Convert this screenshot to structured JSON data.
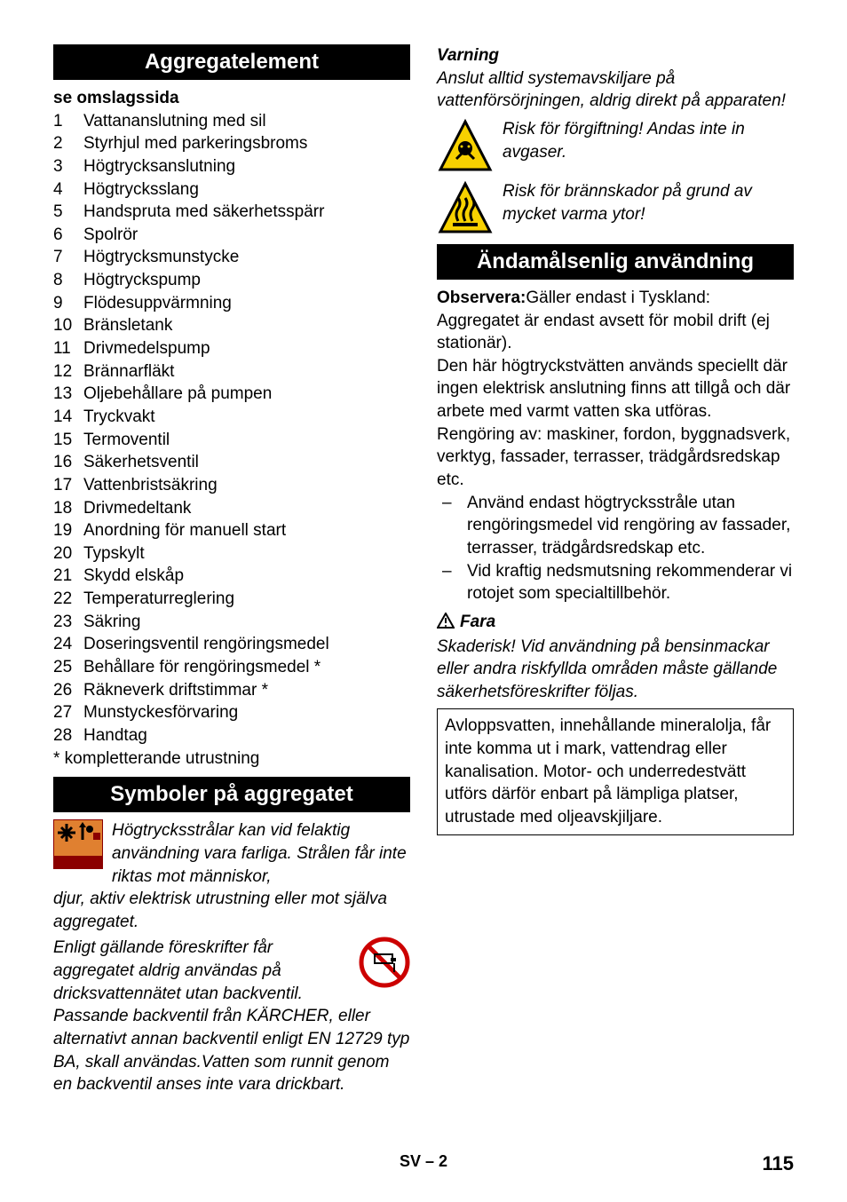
{
  "left": {
    "header1": "Aggregatelement",
    "referenceLine": "se omslagssida",
    "items": [
      "Vattananslutning med sil",
      "Styrhjul med parkeringsbroms",
      "Högtrycksanslutning",
      "Högtrycksslang",
      "Handspruta med säkerhetsspärr",
      "Spolrör",
      "Högtrycksmunstycke",
      "Högtryckspump",
      "Flödesuppvärmning",
      "Bränsletank",
      "Drivmedelspump",
      "Brännarfläkt",
      "Oljebehållare på pumpen",
      "Tryckvakt",
      "Termoventil",
      "Säkerhetsventil",
      "Vattenbristsäkring",
      "Drivmedeltank",
      "Anordning för manuell start",
      "Typskylt",
      "Skydd elskåp",
      "Temperaturreglering",
      "Säkring",
      "Doseringsventil rengöringsmedel",
      "Behållare för rengöringsmedel *",
      "Räkneverk driftstimmar *",
      "Munstyckesförvaring",
      "Handtag"
    ],
    "footnote": "* kompletterande utrustning",
    "header2": "Symboler på aggregatet",
    "symText1": "Högtrycksstrålar kan vid felaktig användning vara farliga. Strålen får inte riktas mot människor, djur, aktiv elektrisk utrustning eller mot själva aggregatet.",
    "symText2": "Enligt gällande föreskrifter får aggregatet aldrig användas på dricksvattennätet utan backventil. Passande backventil från KÄRCHER, eller alternativt annan backventil enligt EN 12729 typ BA, skall användas.Vatten som runnit genom en backventil anses inte vara drickbart."
  },
  "right": {
    "warningLabel": "Varning",
    "warningText": "Anslut alltid systemavskiljare på vattenförsörjningen, aldrig direkt på apparaten!",
    "hazard1": "Risk för förgiftning! Andas inte in avgaser.",
    "hazard2": "Risk för brännskador på grund av mycket varma ytor!",
    "header": "Ändamålsenlig användning",
    "noteLabel": "Observera:",
    "noteText": "Gäller endast i Tyskland: Aggregatet är endast avsett för mobil drift (ej stationär).",
    "para1": "Den här högtryckstvätten används speciellt där ingen elektrisk anslutning finns att tillgå och där arbete med varmt vatten ska utföras.",
    "para2": "Rengöring av: maskiner, fordon, byggnadsverk, verktyg, fassader, terrasser, trädgårdsredskap etc.",
    "bullets": [
      "Använd endast högtrycksstråle utan rengöringsmedel vid rengöring av fassader, terrasser, trädgårdsredskap etc.",
      "Vid kraftig nedsmutsning rekommenderar vi rotojet som specialtillbehör."
    ],
    "dangerLabel": "Fara",
    "dangerText": "Skaderisk! Vid användning på bensinmackar eller andra riskfyllda områden måste gällande säkerhetsföreskrifter följas.",
    "boxedText": "Avloppsvatten, innehållande mineralolja, får inte komma ut i mark, vattendrag eller kanalisation. Motor- och underredestvätt utförs därför enbart på lämpliga platser, utrustade med oljeavskjiljare."
  },
  "footer": {
    "center": "SV – 2",
    "page": "115"
  },
  "colors": {
    "triangleBorder": "#000000",
    "triangleFill": "#f7d100",
    "redCircle": "#cc0000"
  }
}
